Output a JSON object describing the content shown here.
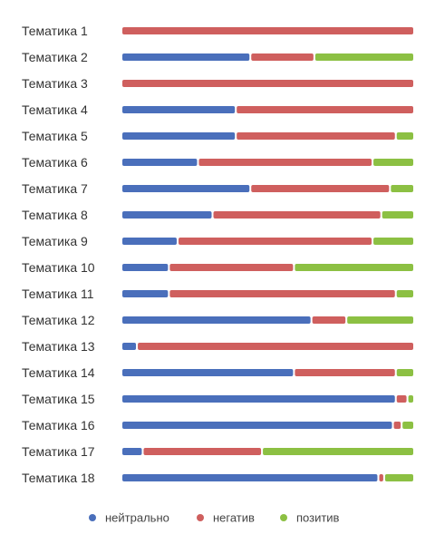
{
  "chart_data": {
    "type": "bar",
    "orientation": "horizontal",
    "stacked": "percent",
    "categories": [
      "Тематика 1",
      "Тематика 2",
      "Тематика 3",
      "Тематика 4",
      "Тематика 5",
      "Тематика 6",
      "Тематика 7",
      "Тематика 8",
      "Тематика 9",
      "Тематика 10",
      "Тематика 11",
      "Тематика 12",
      "Тематика 13",
      "Тематика 14",
      "Тематика 15",
      "Тематика 16",
      "Тематика 17",
      "Тематика 18"
    ],
    "series": [
      {
        "name": "нейтрально",
        "color": "#4a6fbb",
        "values": [
          0,
          44,
          0,
          39,
          39,
          26,
          44,
          31,
          19,
          16,
          16,
          65,
          5,
          59,
          94,
          93,
          7,
          88
        ]
      },
      {
        "name": "негатив",
        "color": "#cf5f5e",
        "values": [
          100,
          22,
          100,
          61,
          55,
          60,
          48,
          58,
          67,
          43,
          78,
          12,
          95,
          35,
          4,
          3,
          41,
          2
        ]
      },
      {
        "name": "позитив",
        "color": "#8cc043",
        "values": [
          0,
          34,
          0,
          0,
          6,
          14,
          8,
          11,
          14,
          41,
          6,
          23,
          0,
          6,
          2,
          4,
          52,
          10
        ]
      }
    ],
    "xlim": [
      0,
      100
    ],
    "grid": false,
    "legend_position": "bottom-center"
  }
}
